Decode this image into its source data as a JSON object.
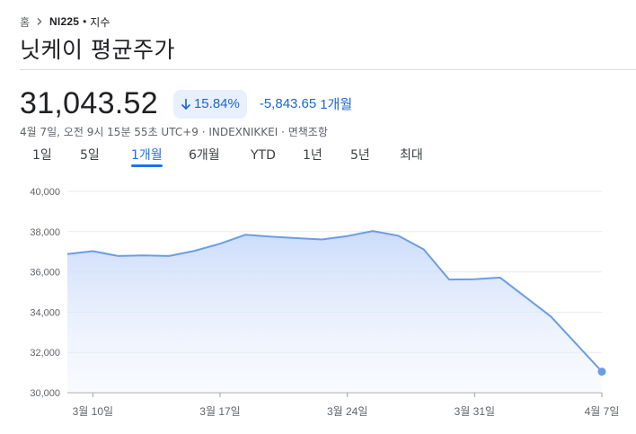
{
  "breadcrumb": {
    "home": "홈",
    "ticker": "NI225",
    "separator": "•",
    "kind": "지수"
  },
  "title": "닛케이 평균주가",
  "quote": {
    "price": "31,043.52",
    "change_pct": "15.84%",
    "change_abs": "-5,843.65",
    "period": "1개월",
    "meta": "4월 7일, 오전 9시 15분 55초 UTC+9 · INDEXNIKKEI · 면책조항"
  },
  "tabs": [
    {
      "label": "1일",
      "active": false
    },
    {
      "label": "5일",
      "active": false
    },
    {
      "label": "1개월",
      "active": true
    },
    {
      "label": "6개월",
      "active": false
    },
    {
      "label": "YTD",
      "active": false
    },
    {
      "label": "1년",
      "active": false
    },
    {
      "label": "5년",
      "active": false
    },
    {
      "label": "최대",
      "active": false
    }
  ],
  "colors": {
    "accent": "#1a73e8",
    "down": "#1967d2",
    "line": "#6b9de6",
    "fill_top": "#c9dafa"
  },
  "icons": {
    "breadcrumb_separator": "chevron-right-icon",
    "change_direction": "arrow-down-icon"
  },
  "chart_data": {
    "type": "area",
    "x_tick_labels": [
      "3월 10일",
      "3월 17일",
      "3월 24일",
      "3월 31일",
      "4월 7일"
    ],
    "x_tick_index": [
      1,
      6,
      11,
      16,
      21
    ],
    "y_ticks": [
      40000,
      38000,
      36000,
      34000,
      32000,
      30000
    ],
    "y_tick_labels": [
      "40,000",
      "38,000",
      "36,000",
      "34,000",
      "32,000",
      "30,000"
    ],
    "ylim": [
      30000,
      40000
    ],
    "values": [
      36890,
      37030,
      36790,
      36820,
      36790,
      37050,
      37400,
      37850,
      37750,
      37680,
      37610,
      37780,
      38030,
      37800,
      37120,
      35620,
      35640,
      35720,
      34750,
      33780,
      31044
    ],
    "x_index": [
      0,
      1,
      2,
      3,
      4,
      5,
      6,
      7,
      8,
      9,
      10,
      11,
      12,
      13,
      14,
      15,
      16,
      17,
      18,
      19,
      21
    ],
    "grid": true
  }
}
